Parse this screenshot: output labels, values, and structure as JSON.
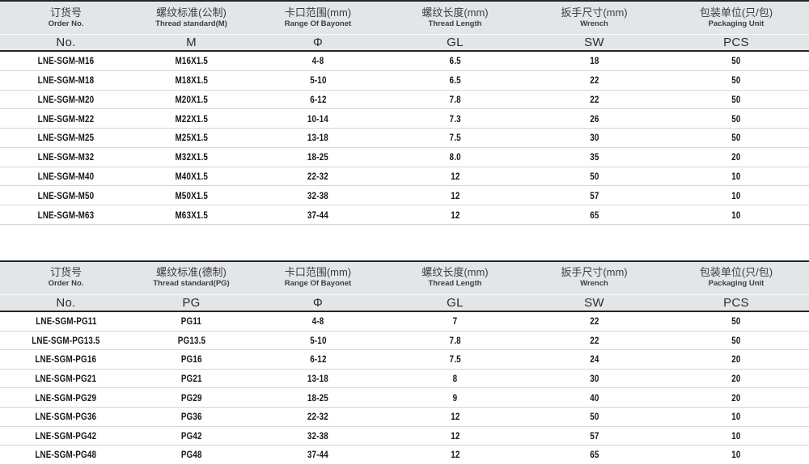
{
  "colors": {
    "header_bg": "#e3e6e9",
    "dark_border": "#252525",
    "row_border": "#d3d6d8",
    "data_text": "#161616",
    "header_text": "#3d3d3d"
  },
  "tables": [
    {
      "name": "metric-thread-table",
      "columns": [
        {
          "cn": "订货号",
          "en": "Order No.",
          "sym": "No."
        },
        {
          "cn": "螺纹标准(公制)",
          "en": "Thread standard(M)",
          "sym": "M"
        },
        {
          "cn": "卡口范围(mm)",
          "en": "Range Of Bayonet",
          "sym": "Φ"
        },
        {
          "cn": "螺纹长度(mm)",
          "en": "Thread Length",
          "sym": "GL"
        },
        {
          "cn": "扳手尺寸(mm)",
          "en": "Wrench",
          "sym": "SW"
        },
        {
          "cn": "包装单位(只/包)",
          "en": "Packaging Unit",
          "sym": "PCS"
        }
      ],
      "rows": [
        [
          "LNE-SGM-M16",
          "M16X1.5",
          "4-8",
          "6.5",
          "18",
          "50"
        ],
        [
          "LNE-SGM-M18",
          "M18X1.5",
          "5-10",
          "6.5",
          "22",
          "50"
        ],
        [
          "LNE-SGM-M20",
          "M20X1.5",
          "6-12",
          "7.8",
          "22",
          "50"
        ],
        [
          "LNE-SGM-M22",
          "M22X1.5",
          "10-14",
          "7.3",
          "26",
          "50"
        ],
        [
          "LNE-SGM-M25",
          "M25X1.5",
          "13-18",
          "7.5",
          "30",
          "50"
        ],
        [
          "LNE-SGM-M32",
          "M32X1.5",
          "18-25",
          "8.0",
          "35",
          "20"
        ],
        [
          "LNE-SGM-M40",
          "M40X1.5",
          "22-32",
          "12",
          "50",
          "10"
        ],
        [
          "LNE-SGM-M50",
          "M50X1.5",
          "32-38",
          "12",
          "57",
          "10"
        ],
        [
          "LNE-SGM-M63",
          "M63X1.5",
          "37-44",
          "12",
          "65",
          "10"
        ]
      ]
    },
    {
      "name": "pg-thread-table",
      "columns": [
        {
          "cn": "订货号",
          "en": "Order No.",
          "sym": "No."
        },
        {
          "cn": "螺纹标准(德制)",
          "en": "Thread standard(PG)",
          "sym": "PG"
        },
        {
          "cn": "卡口范围(mm)",
          "en": "Range Of Bayonet",
          "sym": "Φ"
        },
        {
          "cn": "螺纹长度(mm)",
          "en": "Thread Length",
          "sym": "GL"
        },
        {
          "cn": "扳手尺寸(mm)",
          "en": "Wrench",
          "sym": "SW"
        },
        {
          "cn": "包装单位(只/包)",
          "en": "Packaging Unit",
          "sym": "PCS"
        }
      ],
      "rows": [
        [
          "LNE-SGM-PG11",
          "PG11",
          "4-8",
          "7",
          "22",
          "50"
        ],
        [
          "LNE-SGM-PG13.5",
          "PG13.5",
          "5-10",
          "7.8",
          "22",
          "50"
        ],
        [
          "LNE-SGM-PG16",
          "PG16",
          "6-12",
          "7.5",
          "24",
          "20"
        ],
        [
          "LNE-SGM-PG21",
          "PG21",
          "13-18",
          "8",
          "30",
          "20"
        ],
        [
          "LNE-SGM-PG29",
          "PG29",
          "18-25",
          "9",
          "40",
          "20"
        ],
        [
          "LNE-SGM-PG36",
          "PG36",
          "22-32",
          "12",
          "50",
          "10"
        ],
        [
          "LNE-SGM-PG42",
          "PG42",
          "32-38",
          "12",
          "57",
          "10"
        ],
        [
          "LNE-SGM-PG48",
          "PG48",
          "37-44",
          "12",
          "65",
          "10"
        ]
      ]
    }
  ]
}
